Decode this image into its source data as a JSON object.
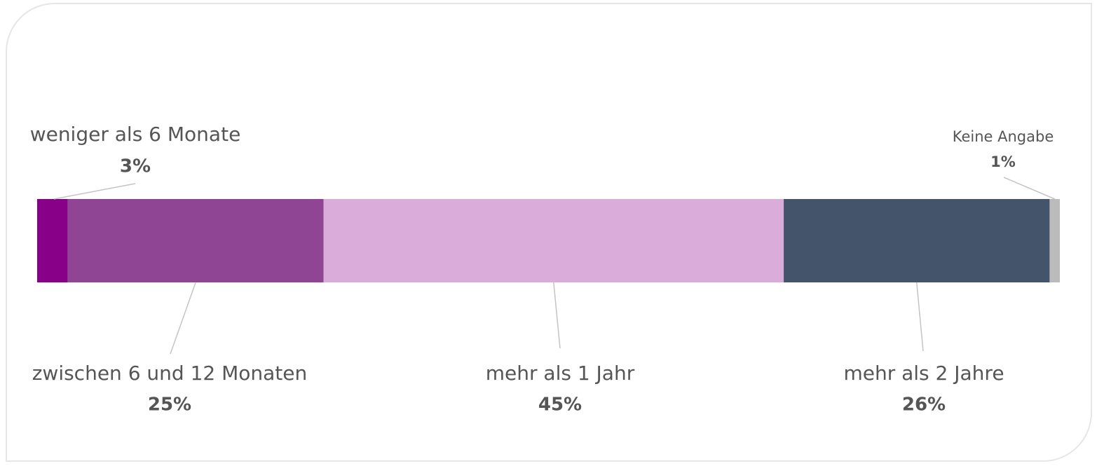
{
  "chart_data": {
    "type": "stacked-bar",
    "categories": [
      "weniger als 6 Monate",
      "zwischen 6 und 12 Monaten",
      "mehr als 1 Jahr",
      "mehr als 2 Jahre",
      "Keine Angabe"
    ],
    "values": [
      3,
      25,
      45,
      26,
      1
    ],
    "value_labels": [
      "3%",
      "25%",
      "45%",
      "26%",
      "1%"
    ],
    "colors": [
      "#880088",
      "#904494",
      "#d9acd9",
      "#44546a",
      "#bbbbbb"
    ]
  }
}
